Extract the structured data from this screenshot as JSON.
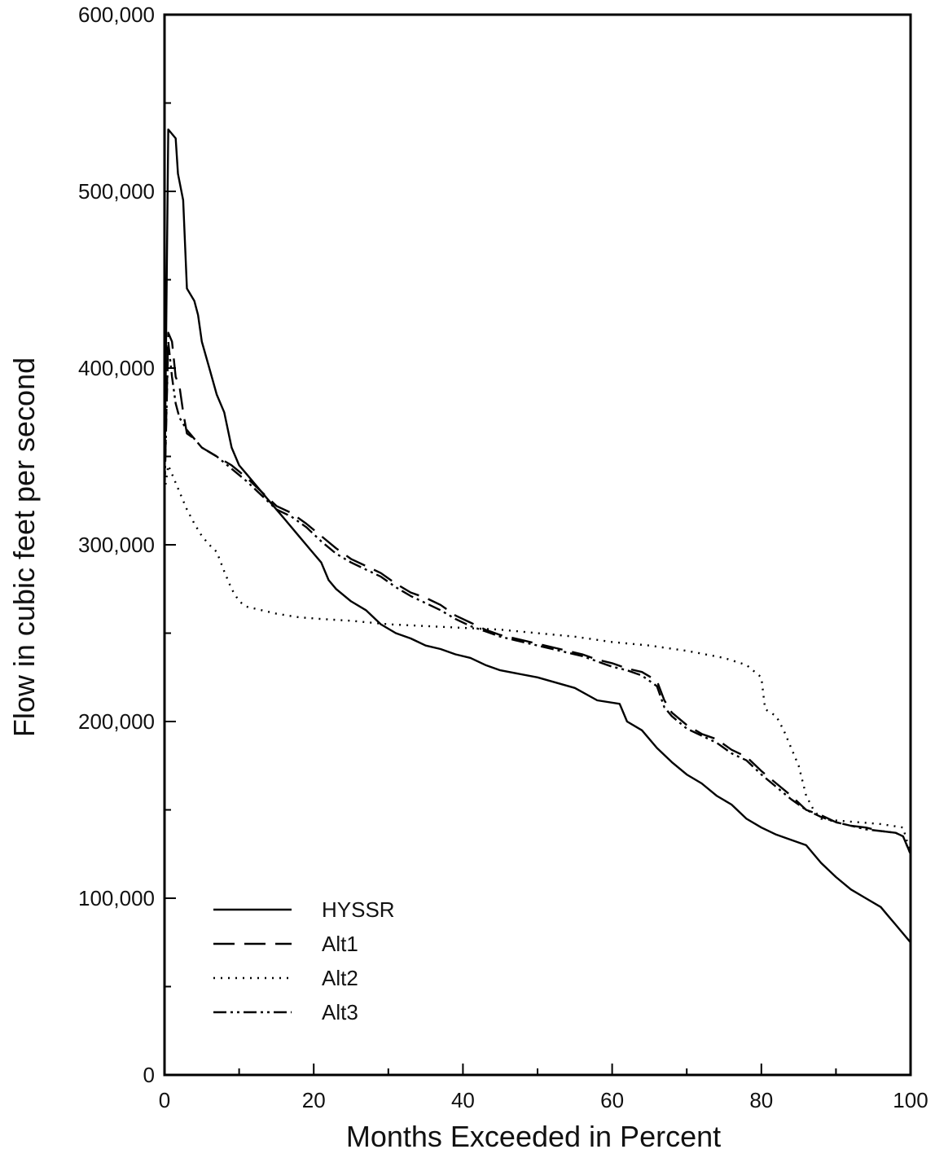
{
  "chart_data": {
    "type": "line",
    "xlabel": "Months Exceeded in Percent",
    "ylabel": "Flow in cubic feet per second",
    "xlim": [
      0,
      100
    ],
    "ylim": [
      0,
      600000
    ],
    "x_ticks": [
      0,
      20,
      40,
      60,
      80,
      100
    ],
    "x_tick_labels": [
      "0",
      "20",
      "40",
      "60",
      "80",
      "100"
    ],
    "y_ticks": [
      0,
      100000,
      200000,
      300000,
      400000,
      500000,
      600000
    ],
    "y_tick_labels": [
      "0",
      "100,000",
      "200,000",
      "300,000",
      "400,000",
      "500,000",
      "600,000"
    ],
    "grid": false,
    "legend_position": "bottom-left",
    "series": [
      {
        "name": "HYSSR",
        "style": "solid",
        "points": [
          [
            0,
            330000
          ],
          [
            0.5,
            535000
          ],
          [
            1.5,
            530000
          ],
          [
            1.8,
            510000
          ],
          [
            2.5,
            495000
          ],
          [
            3,
            445000
          ],
          [
            4,
            438000
          ],
          [
            4.5,
            430000
          ],
          [
            5,
            415000
          ],
          [
            6,
            400000
          ],
          [
            7,
            385000
          ],
          [
            8,
            375000
          ],
          [
            9,
            355000
          ],
          [
            9.5,
            350000
          ],
          [
            10,
            345000
          ],
          [
            11,
            340000
          ],
          [
            12,
            335000
          ],
          [
            14,
            325000
          ],
          [
            16,
            315000
          ],
          [
            18,
            305000
          ],
          [
            19,
            300000
          ],
          [
            20,
            295000
          ],
          [
            21,
            290000
          ],
          [
            22,
            280000
          ],
          [
            23,
            275000
          ],
          [
            25,
            268000
          ],
          [
            27,
            263000
          ],
          [
            29,
            255000
          ],
          [
            31,
            250000
          ],
          [
            33,
            247000
          ],
          [
            35,
            243000
          ],
          [
            37,
            241000
          ],
          [
            39,
            238000
          ],
          [
            41,
            236000
          ],
          [
            43,
            232000
          ],
          [
            45,
            229000
          ],
          [
            50,
            225000
          ],
          [
            55,
            219000
          ],
          [
            58,
            212000
          ],
          [
            61,
            210000
          ],
          [
            62,
            200000
          ],
          [
            64,
            195000
          ],
          [
            66,
            185000
          ],
          [
            68,
            177000
          ],
          [
            70,
            170000
          ],
          [
            72,
            165000
          ],
          [
            74,
            158000
          ],
          [
            76,
            153000
          ],
          [
            78,
            145000
          ],
          [
            80,
            140000
          ],
          [
            82,
            136000
          ],
          [
            84,
            133000
          ],
          [
            86,
            130000
          ],
          [
            88,
            120000
          ],
          [
            90,
            112000
          ],
          [
            92,
            105000
          ],
          [
            94,
            100000
          ],
          [
            96,
            95000
          ],
          [
            97,
            90000
          ],
          [
            98,
            85000
          ],
          [
            99,
            80000
          ],
          [
            100,
            75000
          ]
        ]
      },
      {
        "name": "Alt1",
        "style": "dashed",
        "points": [
          [
            0,
            330000
          ],
          [
            0.5,
            420000
          ],
          [
            1,
            415000
          ],
          [
            1.5,
            395000
          ],
          [
            2,
            390000
          ],
          [
            2.5,
            375000
          ],
          [
            3,
            363000
          ],
          [
            4,
            360000
          ],
          [
            5,
            355000
          ],
          [
            7,
            350000
          ],
          [
            9,
            345000
          ],
          [
            11,
            338000
          ],
          [
            13,
            330000
          ],
          [
            15,
            322000
          ],
          [
            17,
            318000
          ],
          [
            19,
            312000
          ],
          [
            21,
            305000
          ],
          [
            23,
            298000
          ],
          [
            25,
            292000
          ],
          [
            27,
            288000
          ],
          [
            29,
            284000
          ],
          [
            31,
            278000
          ],
          [
            33,
            273000
          ],
          [
            35,
            270000
          ],
          [
            37,
            266000
          ],
          [
            39,
            260000
          ],
          [
            41,
            256000
          ],
          [
            43,
            252000
          ],
          [
            45,
            249000
          ],
          [
            47,
            247000
          ],
          [
            50,
            244000
          ],
          [
            53,
            241000
          ],
          [
            56,
            238000
          ],
          [
            58,
            235000
          ],
          [
            60,
            233000
          ],
          [
            62,
            230000
          ],
          [
            64,
            228000
          ],
          [
            66,
            223000
          ],
          [
            67,
            212000
          ],
          [
            68,
            205000
          ],
          [
            70,
            198000
          ],
          [
            72,
            193000
          ],
          [
            74,
            190000
          ],
          [
            76,
            184000
          ],
          [
            78,
            180000
          ],
          [
            80,
            172000
          ],
          [
            82,
            165000
          ],
          [
            84,
            158000
          ],
          [
            86,
            150000
          ],
          [
            88,
            147000
          ],
          [
            90,
            143000
          ],
          [
            92,
            141000
          ],
          [
            94,
            140000
          ],
          [
            96,
            138000
          ],
          [
            98,
            137000
          ],
          [
            99,
            135000
          ],
          [
            100,
            125000
          ]
        ]
      },
      {
        "name": "Alt2",
        "style": "dotted",
        "points": [
          [
            0,
            330000
          ],
          [
            0.5,
            345000
          ],
          [
            1,
            340000
          ],
          [
            2,
            330000
          ],
          [
            3,
            320000
          ],
          [
            4,
            312000
          ],
          [
            5,
            305000
          ],
          [
            6,
            300000
          ],
          [
            7,
            296000
          ],
          [
            8,
            285000
          ],
          [
            9,
            275000
          ],
          [
            10,
            268000
          ],
          [
            11,
            265000
          ],
          [
            13,
            263000
          ],
          [
            15,
            261000
          ],
          [
            18,
            259000
          ],
          [
            21,
            258000
          ],
          [
            25,
            257000
          ],
          [
            30,
            255000
          ],
          [
            35,
            254000
          ],
          [
            40,
            253000
          ],
          [
            45,
            252000
          ],
          [
            50,
            250000
          ],
          [
            55,
            248000
          ],
          [
            60,
            245000
          ],
          [
            65,
            243000
          ],
          [
            70,
            240000
          ],
          [
            75,
            236000
          ],
          [
            78,
            232000
          ],
          [
            80,
            225000
          ],
          [
            80.5,
            207000
          ],
          [
            82,
            203000
          ],
          [
            83,
            195000
          ],
          [
            84,
            185000
          ],
          [
            85,
            175000
          ],
          [
            86,
            158000
          ],
          [
            87,
            150000
          ],
          [
            88,
            145000
          ],
          [
            90,
            144000
          ],
          [
            93,
            143000
          ],
          [
            96,
            142000
          ],
          [
            99,
            140000
          ],
          [
            100,
            125000
          ]
        ]
      },
      {
        "name": "Alt3",
        "style": "dash-dot-dot",
        "points": [
          [
            0,
            330000
          ],
          [
            0.5,
            415000
          ],
          [
            1,
            395000
          ],
          [
            1.5,
            380000
          ],
          [
            2,
            372000
          ],
          [
            3,
            365000
          ],
          [
            4,
            360000
          ],
          [
            5,
            355000
          ],
          [
            7,
            350000
          ],
          [
            9,
            343000
          ],
          [
            11,
            336000
          ],
          [
            13,
            328000
          ],
          [
            15,
            320000
          ],
          [
            17,
            316000
          ],
          [
            19,
            310000
          ],
          [
            21,
            302000
          ],
          [
            23,
            295000
          ],
          [
            25,
            290000
          ],
          [
            27,
            286000
          ],
          [
            29,
            282000
          ],
          [
            31,
            276000
          ],
          [
            33,
            271000
          ],
          [
            35,
            267000
          ],
          [
            37,
            263000
          ],
          [
            39,
            258000
          ],
          [
            41,
            254000
          ],
          [
            43,
            251000
          ],
          [
            45,
            248000
          ],
          [
            47,
            246000
          ],
          [
            50,
            243000
          ],
          [
            53,
            240000
          ],
          [
            56,
            237000
          ],
          [
            58,
            234000
          ],
          [
            60,
            231000
          ],
          [
            62,
            229000
          ],
          [
            64,
            226000
          ],
          [
            66,
            220000
          ],
          [
            67,
            208000
          ],
          [
            68,
            203000
          ],
          [
            70,
            196000
          ],
          [
            72,
            192000
          ],
          [
            74,
            188000
          ],
          [
            76,
            182000
          ],
          [
            78,
            178000
          ],
          [
            80,
            170000
          ],
          [
            82,
            163000
          ],
          [
            84,
            156000
          ],
          [
            86,
            150000
          ],
          [
            88,
            146000
          ],
          [
            90,
            143000
          ],
          [
            92,
            141000
          ],
          [
            94,
            139000
          ],
          [
            96,
            138000
          ],
          [
            98,
            137000
          ],
          [
            99,
            135000
          ],
          [
            100,
            125000
          ]
        ]
      }
    ]
  }
}
